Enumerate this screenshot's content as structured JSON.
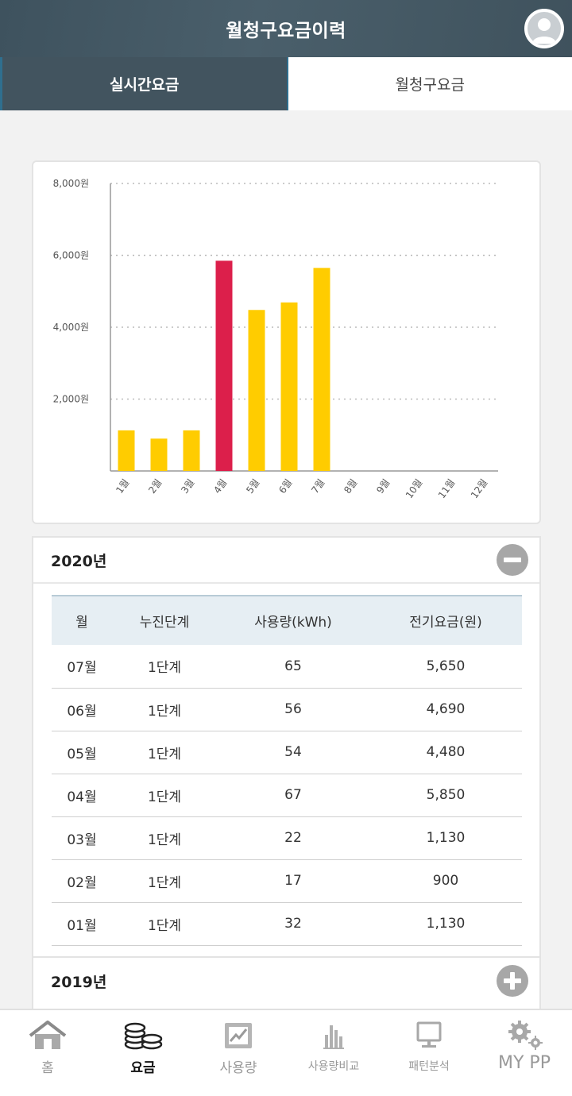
{
  "header": {
    "title": "월청구요금이력",
    "avatar_icon": "user-avatar-icon"
  },
  "tabs": [
    {
      "label": "실시간요금",
      "active": true
    },
    {
      "label": "월청구요금",
      "active": false
    }
  ],
  "chart_data": {
    "type": "bar",
    "categories": [
      "1월",
      "2월",
      "3월",
      "4월",
      "5월",
      "6월",
      "7월",
      "8월",
      "9월",
      "10월",
      "11월",
      "12월"
    ],
    "values": [
      1130,
      900,
      1130,
      5850,
      4480,
      4690,
      5650,
      null,
      null,
      null,
      null,
      null
    ],
    "highlight_index": 3,
    "highlight_color": "#dc1f4b",
    "bar_color": "#ffcc00",
    "ylim": [
      0,
      8000
    ],
    "yticks": [
      2000,
      4000,
      6000,
      8000
    ],
    "ytick_labels": [
      "2,000원",
      "4,000원",
      "6,000원",
      "8,000원"
    ],
    "grid": true
  },
  "years": [
    {
      "label": "2020년",
      "expanded": true,
      "columns": [
        "월",
        "누진단계",
        "사용량(kWh)",
        "전기요금(원)"
      ],
      "rows": [
        [
          "07월",
          "1단계",
          "65",
          "5,650"
        ],
        [
          "06월",
          "1단계",
          "56",
          "4,690"
        ],
        [
          "05월",
          "1단계",
          "54",
          "4,480"
        ],
        [
          "04월",
          "1단계",
          "67",
          "5,850"
        ],
        [
          "03월",
          "1단계",
          "22",
          "1,130"
        ],
        [
          "02월",
          "1단계",
          "17",
          "900"
        ],
        [
          "01월",
          "1단계",
          "32",
          "1,130"
        ]
      ]
    },
    {
      "label": "2019년",
      "expanded": false
    }
  ],
  "nav": [
    {
      "label": "홈",
      "icon": "home-icon",
      "active": false
    },
    {
      "label": "요금",
      "icon": "coins-icon",
      "active": true
    },
    {
      "label": "사용량",
      "icon": "usage-chart-icon",
      "active": false
    },
    {
      "label": "사용량비교",
      "icon": "compare-bars-icon",
      "active": false
    },
    {
      "label": "패턴분석",
      "icon": "monitor-icon",
      "active": false
    },
    {
      "label": "MY PP",
      "icon": "gears-icon",
      "active": false
    }
  ]
}
